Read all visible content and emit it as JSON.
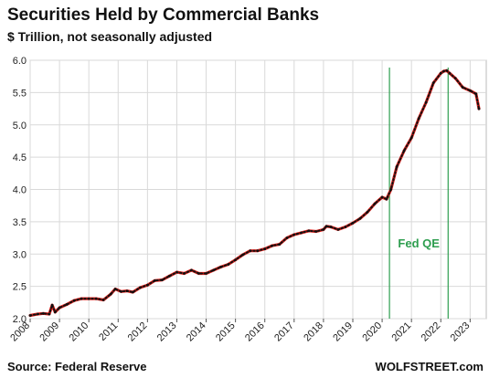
{
  "chart_data": {
    "type": "line",
    "title": "Securities Held by Commercial Banks",
    "subtitle": "$ Trillion, not seasonally adjusted",
    "source": "Source: Federal Reserve",
    "brand": "WOLFSTREET.com",
    "xlabel": "",
    "ylabel": "",
    "ylim": [
      2.0,
      6.0
    ],
    "yticks": [
      "2.0",
      "2.5",
      "3.0",
      "3.5",
      "4.0",
      "4.5",
      "5.0",
      "5.5",
      "6.0"
    ],
    "xticks": [
      "2008",
      "2009",
      "2010",
      "2011",
      "2012",
      "2013",
      "2014",
      "2015",
      "2016",
      "2017",
      "2018",
      "2019",
      "2020",
      "2021",
      "2022",
      "2023"
    ],
    "xlim": [
      2008.0,
      2023.55
    ],
    "grid": true,
    "line_color": "#e0201b",
    "marker_color": "#111111",
    "annotation": {
      "label": "Fed QE",
      "color": "#2e9e4f",
      "start": 2020.25,
      "end": 2022.25
    },
    "series": [
      {
        "x": [
          2008.0,
          2008.25,
          2008.45,
          2008.65,
          2008.75,
          2008.85,
          2009.0,
          2009.25,
          2009.5,
          2009.75,
          2010.0,
          2010.25,
          2010.5,
          2010.75,
          2010.9,
          2011.1,
          2011.3,
          2011.5,
          2011.75,
          2012.0,
          2012.25,
          2012.5,
          2012.75,
          2013.0,
          2013.25,
          2013.5,
          2013.75,
          2014.0,
          2014.25,
          2014.5,
          2014.75,
          2015.0,
          2015.25,
          2015.5,
          2015.75,
          2016.0,
          2016.25,
          2016.5,
          2016.75,
          2017.0,
          2017.25,
          2017.5,
          2017.75,
          2018.0,
          2018.1,
          2018.25,
          2018.5,
          2018.75,
          2019.0,
          2019.25,
          2019.5,
          2019.75,
          2020.0,
          2020.15,
          2020.3,
          2020.5,
          2020.75,
          2021.0,
          2021.25,
          2021.5,
          2021.75,
          2022.0,
          2022.1,
          2022.2,
          2022.3,
          2022.5,
          2022.75,
          2023.0,
          2023.2,
          2023.3
        ],
        "y": [
          2.05,
          2.07,
          2.08,
          2.07,
          2.21,
          2.1,
          2.17,
          2.22,
          2.28,
          2.31,
          2.31,
          2.31,
          2.29,
          2.38,
          2.46,
          2.42,
          2.43,
          2.41,
          2.48,
          2.52,
          2.59,
          2.6,
          2.66,
          2.72,
          2.7,
          2.75,
          2.7,
          2.7,
          2.75,
          2.8,
          2.84,
          2.91,
          2.99,
          3.05,
          3.05,
          3.08,
          3.13,
          3.15,
          3.25,
          3.3,
          3.33,
          3.36,
          3.35,
          3.38,
          3.43,
          3.42,
          3.38,
          3.42,
          3.48,
          3.55,
          3.65,
          3.78,
          3.88,
          3.85,
          4.0,
          4.35,
          4.6,
          4.8,
          5.1,
          5.35,
          5.65,
          5.8,
          5.83,
          5.84,
          5.8,
          5.72,
          5.58,
          5.53,
          5.48,
          5.25
        ]
      }
    ]
  }
}
